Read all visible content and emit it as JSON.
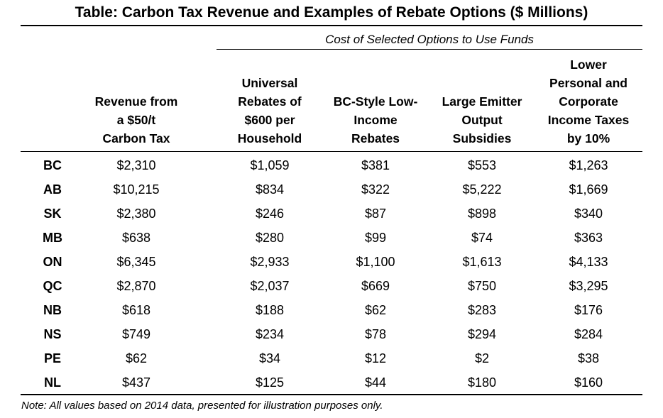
{
  "title": "Table: Carbon Tax Revenue and Examples of Rebate Options ($ Millions)",
  "group_header": "Cost of Selected Options to Use Funds",
  "columns": [
    "Revenue from\na $50/t\nCarbon Tax",
    "Universal\nRebates of\n$600 per\nHousehold",
    "BC-Style Low-\nIncome\nRebates",
    "Large Emitter\nOutput\nSubsidies",
    "Lower\nPersonal and\nCorporate\nIncome Taxes\nby 10%"
  ],
  "rows": [
    {
      "province": "BC",
      "values": [
        "$2,310",
        "$1,059",
        "$381",
        "$553",
        "$1,263"
      ]
    },
    {
      "province": "AB",
      "values": [
        "$10,215",
        "$834",
        "$322",
        "$5,222",
        "$1,669"
      ]
    },
    {
      "province": "SK",
      "values": [
        "$2,380",
        "$246",
        "$87",
        "$898",
        "$340"
      ]
    },
    {
      "province": "MB",
      "values": [
        "$638",
        "$280",
        "$99",
        "$74",
        "$363"
      ]
    },
    {
      "province": "ON",
      "values": [
        "$6,345",
        "$2,933",
        "$1,100",
        "$1,613",
        "$4,133"
      ]
    },
    {
      "province": "QC",
      "values": [
        "$2,870",
        "$2,037",
        "$669",
        "$750",
        "$3,295"
      ]
    },
    {
      "province": "NB",
      "values": [
        "$618",
        "$188",
        "$62",
        "$283",
        "$176"
      ]
    },
    {
      "province": "NS",
      "values": [
        "$749",
        "$234",
        "$78",
        "$294",
        "$284"
      ]
    },
    {
      "province": "PE",
      "values": [
        "$62",
        "$34",
        "$12",
        "$2",
        "$38"
      ]
    },
    {
      "province": "NL",
      "values": [
        "$437",
        "$125",
        "$44",
        "$180",
        "$160"
      ]
    }
  ],
  "note": "Note: All values based on 2014 data, presented for illustration purposes only."
}
